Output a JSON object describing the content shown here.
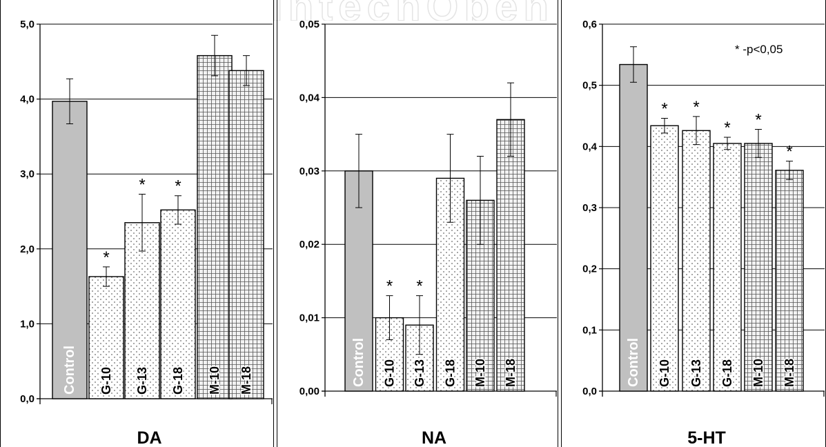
{
  "note": "* -p<0,05",
  "colors": {
    "control": "#c0c0c0",
    "bar": "#ffffff",
    "stroke": "#000000",
    "grid": "#000000"
  },
  "chart_data": [
    {
      "type": "bar",
      "title": "DA",
      "ylim": [
        0,
        5
      ],
      "yticks": [
        "0,0",
        "1,0",
        "2,0",
        "3,0",
        "4,0",
        "5,0"
      ],
      "categories": [
        "Control",
        "G-10",
        "G-13",
        "G-18",
        "M-10",
        "M-18"
      ],
      "values": [
        3.97,
        1.63,
        2.35,
        2.52,
        4.58,
        4.38
      ],
      "errors": [
        0.3,
        0.13,
        0.38,
        0.19,
        0.27,
        0.2
      ],
      "significant": [
        false,
        true,
        true,
        true,
        false,
        false
      ],
      "patterns": [
        "solid",
        "dots",
        "dots",
        "dots",
        "grid",
        "grid"
      ]
    },
    {
      "type": "bar",
      "title": "NA",
      "ylim": [
        0,
        0.05
      ],
      "yticks": [
        "0,00",
        "0,01",
        "0,02",
        "0,03",
        "0,04",
        "0,05"
      ],
      "categories": [
        "Control",
        "G-10",
        "G-13",
        "G-18",
        "M-10",
        "M-18"
      ],
      "values": [
        0.03,
        0.01,
        0.009,
        0.029,
        0.026,
        0.037
      ],
      "errors": [
        0.005,
        0.003,
        0.004,
        0.006,
        0.006,
        0.005
      ],
      "significant": [
        false,
        true,
        true,
        false,
        false,
        false
      ],
      "patterns": [
        "solid",
        "dots",
        "dots",
        "dots",
        "grid",
        "grid"
      ]
    },
    {
      "type": "bar",
      "title": "5-HT",
      "ylim": [
        0,
        0.6
      ],
      "yticks": [
        "0,0",
        "0,1",
        "0,2",
        "0,3",
        "0,4",
        "0,5",
        "0,6"
      ],
      "categories": [
        "Control",
        "G-10",
        "G-13",
        "G-18",
        "M-10",
        "M-18"
      ],
      "values": [
        0.534,
        0.434,
        0.426,
        0.405,
        0.405,
        0.361
      ],
      "errors": [
        0.029,
        0.012,
        0.023,
        0.01,
        0.023,
        0.015
      ],
      "significant": [
        false,
        true,
        true,
        true,
        true,
        true
      ],
      "patterns": [
        "solid",
        "dots",
        "dots",
        "dots",
        "grid",
        "grid"
      ]
    }
  ]
}
